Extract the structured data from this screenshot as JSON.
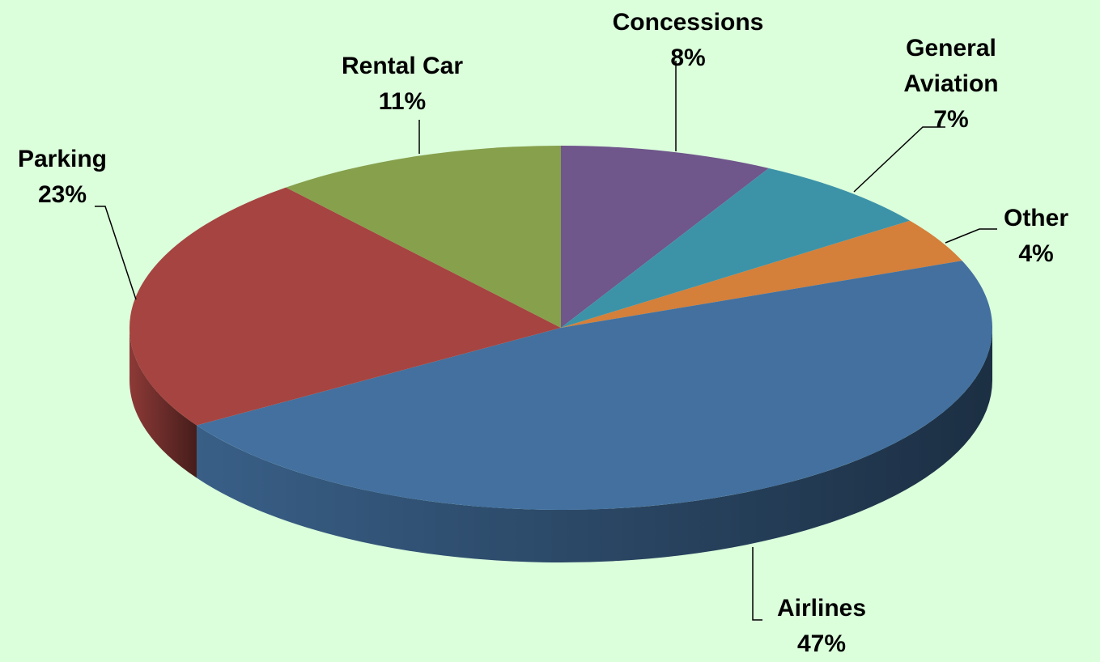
{
  "chart_data": {
    "type": "pie",
    "categories": [
      "Concessions",
      "General Aviation",
      "Other",
      "Airlines",
      "Parking",
      "Rental Car"
    ],
    "values": [
      8,
      7,
      4,
      47,
      23,
      11
    ],
    "value_labels": [
      "8%",
      "7%",
      "4%",
      "47%",
      "23%",
      "11%"
    ],
    "colors": [
      "#6f568b",
      "#3c93a8",
      "#d47f3a",
      "#43709f",
      "#a64441",
      "#86a04c"
    ]
  }
}
